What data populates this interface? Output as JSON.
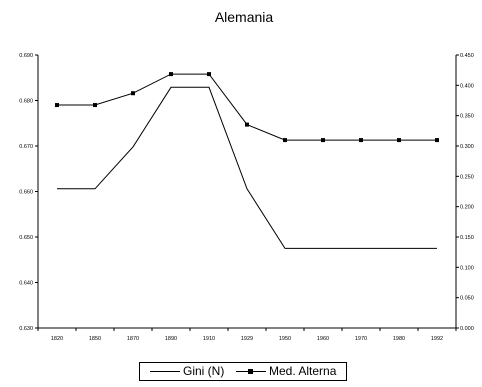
{
  "chart_data": {
    "type": "line",
    "title": "Alemania",
    "categories": [
      "1820",
      "1850",
      "1870",
      "1890",
      "1910",
      "1929",
      "1950",
      "1960",
      "1970",
      "1980",
      "1992"
    ],
    "left_axis": {
      "ylim": [
        0.63,
        0.69
      ],
      "tick_labels": [
        "0.690",
        "0.680",
        "0.670",
        "0.660",
        "0.650",
        "0.640",
        "0.630"
      ]
    },
    "right_axis": {
      "ylim": [
        0.0,
        0.45
      ],
      "tick_labels": [
        "0.450",
        "0.400",
        "0.350",
        "0.300",
        "0.250",
        "0.200",
        "0.150",
        "0.100",
        "0.050",
        "0.000"
      ]
    },
    "series": [
      {
        "name": "Gini (N)",
        "axis": "left",
        "marker": "none",
        "values": [
          0.6606,
          0.6606,
          0.6698,
          0.6829,
          0.6829,
          0.6606,
          0.6475,
          0.6475,
          0.6475,
          0.6475,
          0.6475
        ]
      },
      {
        "name": "Med. Alterna",
        "axis": "left",
        "marker": "square",
        "values": [
          0.679,
          0.679,
          0.6816,
          0.6858,
          0.6858,
          0.6747,
          0.6713,
          0.6713,
          0.6713,
          0.6713,
          0.6713
        ]
      }
    ],
    "grid": false,
    "legend_position": "bottom"
  }
}
